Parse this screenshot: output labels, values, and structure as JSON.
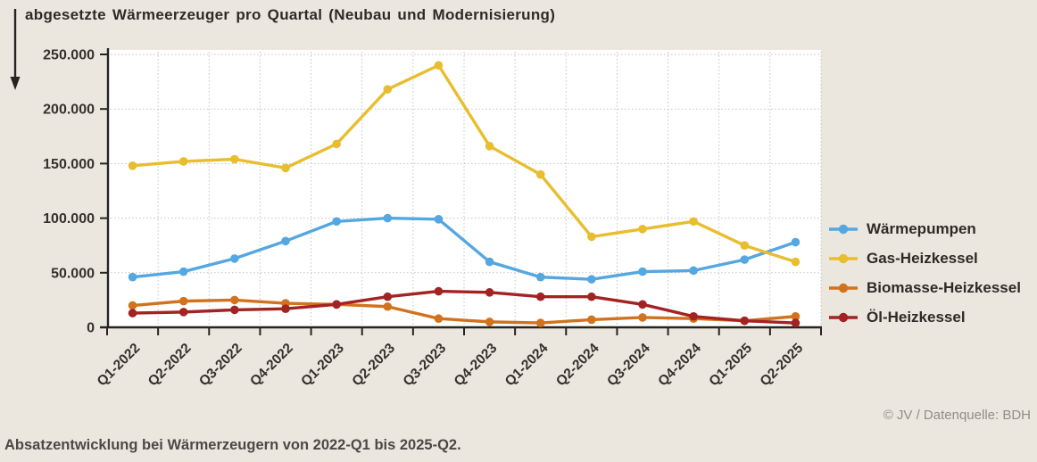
{
  "header": {
    "title": "abgesetzte Wärmeerzeuger pro Quartal (Neubau und Modernisierung)"
  },
  "footer": {
    "credit": "© JV / Datenquelle: BDH",
    "caption": "Absatzentwicklung bei Wärmerzeugern von 2022-Q1 bis 2025-Q2."
  },
  "icons": {
    "down_arrow": "down-arrow-icon"
  },
  "colors": {
    "background": "#ebe7df",
    "plot_background": "#ffffff",
    "gridline": "#c7c7c7",
    "axis": "#262421",
    "tick_label": "#33312c",
    "title_text": "#2d2b26",
    "caption_text": "#4b4945",
    "credit_text": "#8f8e88"
  },
  "chart_data": {
    "type": "line",
    "title": "abgesetzte Wärmeerzeuger pro Quartal (Neubau und Modernisierung)",
    "xlabel": "",
    "ylabel": "abgesetzte Wärmeerzeuger",
    "ylim": [
      0,
      250000
    ],
    "ytick_step": 50000,
    "ytick_labels": [
      "0",
      "50.000",
      "100.000",
      "150.000",
      "200.000",
      "250.000"
    ],
    "grid": true,
    "legend_position": "right",
    "categories": [
      "Q1-2022",
      "Q2-2022",
      "Q3-2022",
      "Q4-2022",
      "Q1-2023",
      "Q2-2023",
      "Q3-2023",
      "Q4-2023",
      "Q1-2024",
      "Q2-2024",
      "Q3-2024",
      "Q4-2024",
      "Q1-2025",
      "Q2-2025"
    ],
    "series": [
      {
        "name": "Wärmepumpen",
        "color": "#54a7e1",
        "values": [
          46000,
          51000,
          63000,
          79000,
          97000,
          100000,
          99000,
          60000,
          46000,
          44000,
          51000,
          52000,
          62000,
          78000
        ]
      },
      {
        "name": "Gas-Heizkessel",
        "color": "#e8bd2e",
        "values": [
          148000,
          152000,
          154000,
          146000,
          168000,
          218000,
          240000,
          166000,
          140000,
          83000,
          90000,
          97000,
          75000,
          60000
        ]
      },
      {
        "name": "Biomasse-Heizkessel",
        "color": "#d2721d",
        "values": [
          20000,
          24000,
          25000,
          22000,
          21000,
          19000,
          8000,
          5000,
          4000,
          7000,
          9000,
          8000,
          6000,
          10000
        ]
      },
      {
        "name": "Öl-Heizkessel",
        "color": "#a32322",
        "values": [
          13000,
          14000,
          16000,
          17000,
          21000,
          28000,
          33000,
          32000,
          28000,
          28000,
          21000,
          10000,
          6000,
          4000
        ]
      }
    ]
  }
}
